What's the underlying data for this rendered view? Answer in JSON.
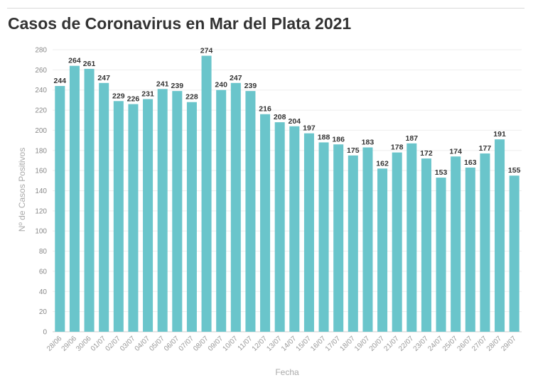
{
  "chart_data": {
    "type": "bar",
    "title": "Casos de Coronavirus en Mar del Plata 2021",
    "xlabel": "Fecha",
    "ylabel": "Nº de Casos Positivos",
    "ylim": [
      0,
      280
    ],
    "yticks": [
      0,
      20,
      40,
      60,
      80,
      100,
      120,
      140,
      160,
      180,
      200,
      220,
      240,
      260,
      280
    ],
    "grid": true,
    "color": "#6ac5cb",
    "categories": [
      "28/06",
      "29/06",
      "30/06",
      "01/07",
      "02/07",
      "03/07",
      "04/07",
      "05/07",
      "06/07",
      "07/07",
      "08/07",
      "09/07",
      "10/07",
      "11/07",
      "12/07",
      "13/07",
      "14/07",
      "15/07",
      "16/07",
      "17/07",
      "18/07",
      "19/07",
      "20/07",
      "21/07",
      "22/07",
      "23/07",
      "24/07",
      "25/07",
      "26/07",
      "27/07",
      "28/07",
      "29/07"
    ],
    "values": [
      244,
      264,
      261,
      247,
      229,
      226,
      231,
      241,
      239,
      228,
      274,
      240,
      247,
      239,
      216,
      208,
      204,
      197,
      188,
      186,
      175,
      183,
      162,
      178,
      187,
      172,
      153,
      174,
      163,
      177,
      191,
      155
    ]
  }
}
